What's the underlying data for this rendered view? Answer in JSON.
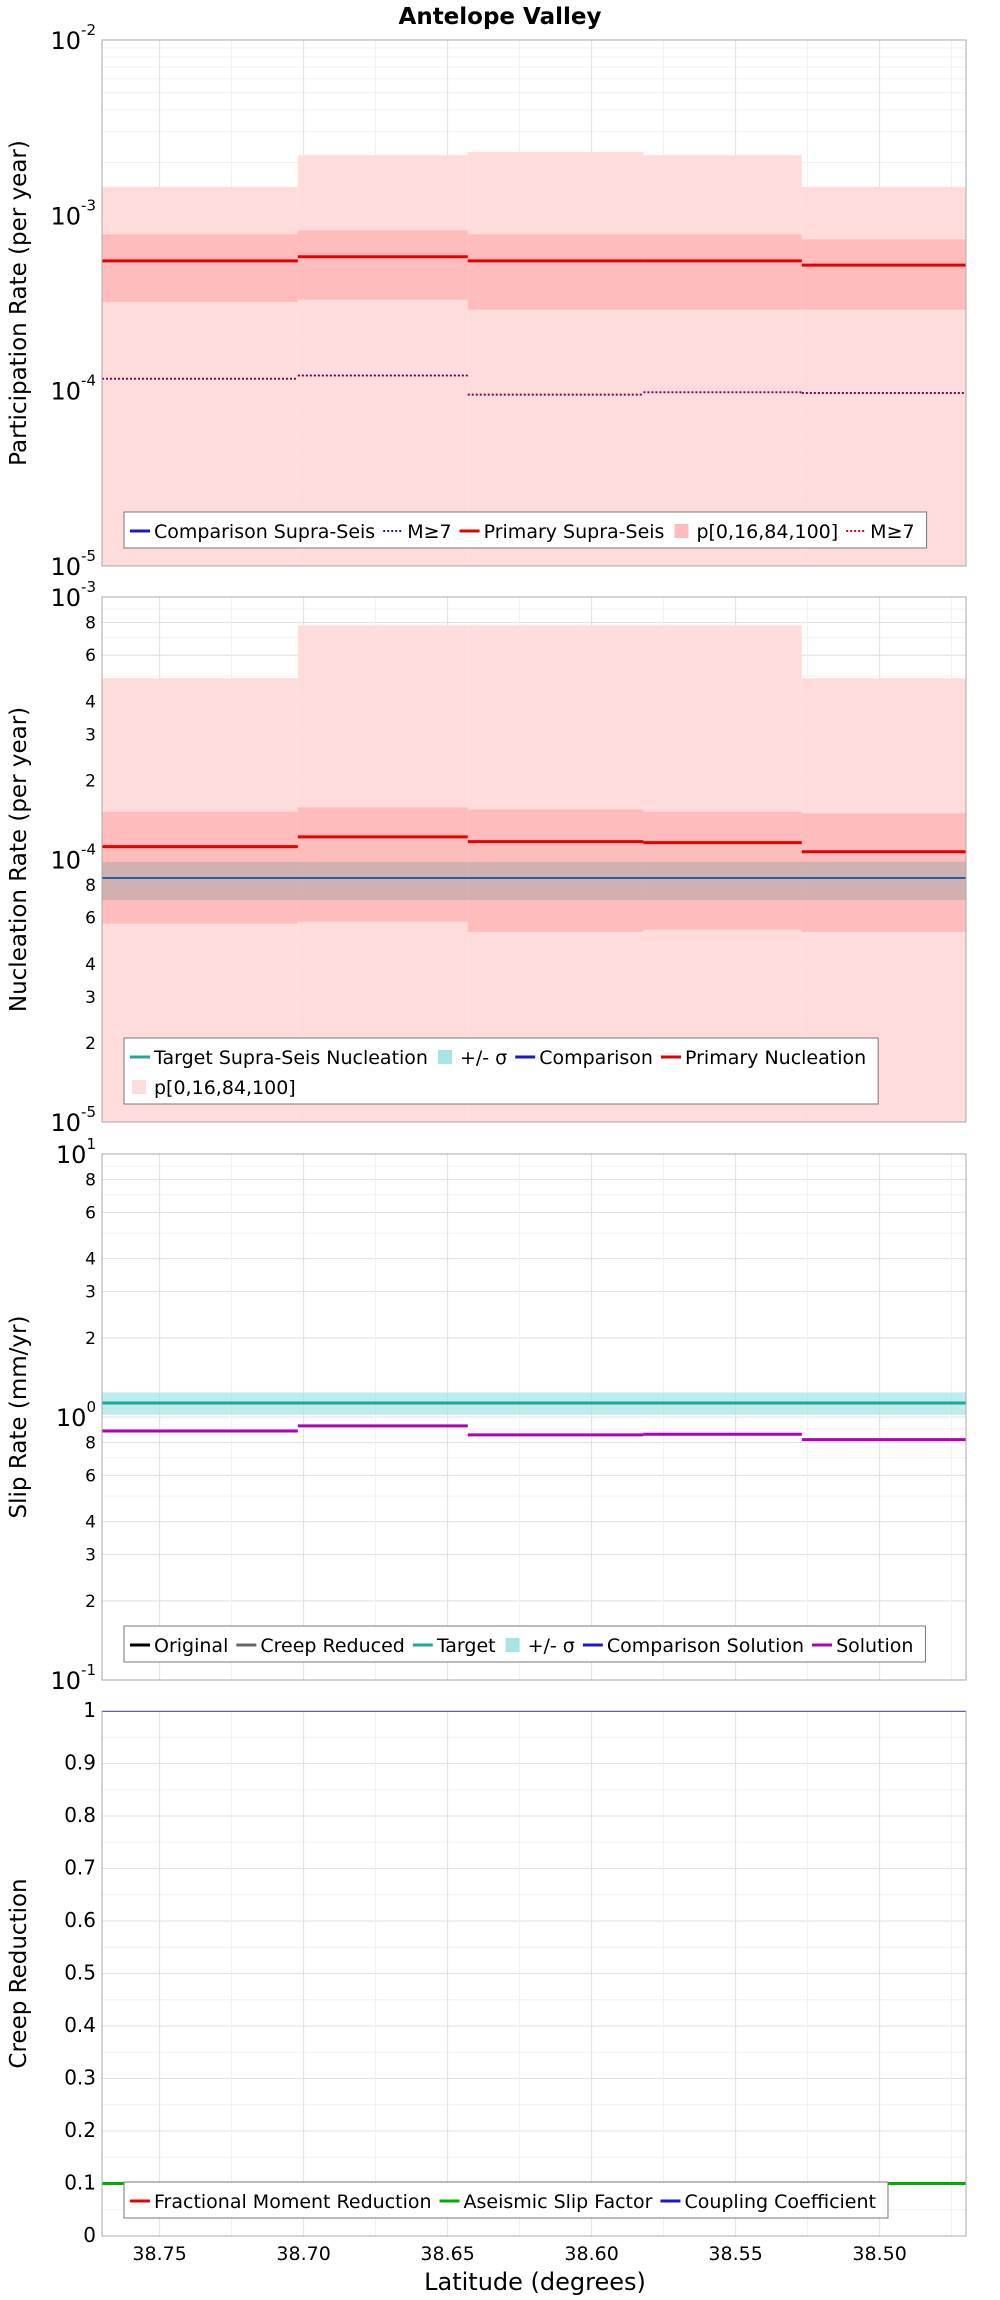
{
  "title": "Antelope Valley",
  "xlabel": "Latitude (degrees)",
  "x_axis": {
    "range": [
      38.77,
      38.47
    ],
    "reversed": true,
    "ticks": [
      "38.75",
      "38.70",
      "38.65",
      "38.60",
      "38.55",
      "38.50"
    ]
  },
  "colors": {
    "primary": "#e60000",
    "primary_band_outer": "#ffdcdc",
    "primary_band_inner": "#ffbcbc",
    "comparison": "#1a1acc",
    "target": "#1aa89a",
    "target_band": "#a8e4e4",
    "solution": "#b000b8",
    "green": "#00b000"
  },
  "chart_data": [
    {
      "type": "line",
      "panel": "participation",
      "ylabel": "Participation Rate (per year)",
      "yscale": "log",
      "ylim": [
        1e-05,
        0.01
      ],
      "y_ticks": [
        {
          "v": 1e-05,
          "base": "10",
          "exp": "-5"
        },
        {
          "v": 0.0001,
          "base": "10",
          "exp": "-4"
        },
        {
          "v": 0.001,
          "base": "10",
          "exp": "-3"
        },
        {
          "v": 0.01,
          "base": "10",
          "exp": "-2"
        }
      ],
      "segments": [
        [
          38.77,
          38.702
        ],
        [
          38.702,
          38.643
        ],
        [
          38.643,
          38.582
        ],
        [
          38.582,
          38.527
        ],
        [
          38.527,
          38.467
        ]
      ],
      "bands": [
        {
          "color": "#ffdcdc",
          "lo": [
            1e-05,
            1e-05,
            1e-05,
            1e-05,
            1e-05
          ],
          "hi": [
            0.00145,
            0.0022,
            0.0023,
            0.0022,
            0.00145
          ]
        },
        {
          "color": "#ffbcbc",
          "lo": [
            0.00032,
            0.00033,
            0.00029,
            0.00029,
            0.00029
          ],
          "hi": [
            0.00078,
            0.00082,
            0.00078,
            0.00078,
            0.00073
          ]
        }
      ],
      "series": [
        {
          "key": "primary",
          "values": [
            0.00055,
            0.00058,
            0.00055,
            0.00055,
            0.00052
          ],
          "color": "#e60000",
          "width": 3
        },
        {
          "key": "primary_m7",
          "values": [
            0.000117,
            0.000122,
            9.5e-05,
            9.8e-05,
            9.7e-05
          ],
          "color": "#e60000",
          "width": 2,
          "dash": "2,2"
        },
        {
          "key": "comparison_m7",
          "values": [
            0.000117,
            0.000122,
            9.5e-05,
            9.8e-05,
            9.7e-05
          ],
          "color": "#1a1acc",
          "width": 1,
          "dash": "2,2"
        }
      ],
      "legend": {
        "rows": [
          [
            {
              "label": "Comparison Supra-Seis",
              "type": "line",
              "color": "#1a1acc"
            },
            {
              "label": "M≥7",
              "type": "dot",
              "color": "#1a1acc"
            },
            {
              "label": "Primary Supra-Seis",
              "type": "line",
              "color": "#e60000"
            },
            {
              "label": "p[0,16,84,100]",
              "type": "fill",
              "color": "#ffbcbc"
            },
            {
              "label": "M≥7",
              "type": "dot",
              "color": "#e60000"
            }
          ]
        ]
      }
    },
    {
      "type": "line",
      "panel": "nucleation",
      "ylabel": "Nucleation Rate (per year)",
      "yscale": "log",
      "ylim": [
        1e-05,
        0.001
      ],
      "y_ticks": [
        {
          "v": 1e-05,
          "base": "10",
          "exp": "-5"
        },
        {
          "v": 2e-05,
          "label": "2"
        },
        {
          "v": 3e-05,
          "label": "3"
        },
        {
          "v": 4e-05,
          "label": "4"
        },
        {
          "v": 6e-05,
          "label": "6"
        },
        {
          "v": 8e-05,
          "label": "8"
        },
        {
          "v": 0.0001,
          "base": "10",
          "exp": "-4"
        },
        {
          "v": 0.0002,
          "label": "2"
        },
        {
          "v": 0.0003,
          "label": "3"
        },
        {
          "v": 0.0004,
          "label": "4"
        },
        {
          "v": 0.0006,
          "label": "6"
        },
        {
          "v": 0.0008,
          "label": "8"
        },
        {
          "v": 0.001,
          "base": "10",
          "exp": "-3"
        }
      ],
      "segments": [
        [
          38.77,
          38.702
        ],
        [
          38.702,
          38.643
        ],
        [
          38.643,
          38.582
        ],
        [
          38.582,
          38.527
        ],
        [
          38.527,
          38.467
        ]
      ],
      "bands": [
        {
          "color": "#ffdcdc",
          "lo": [
            1e-05,
            1e-05,
            1e-05,
            1e-05,
            1e-05
          ],
          "hi": [
            0.00049,
            0.00078,
            0.00078,
            0.00078,
            0.00049
          ]
        },
        {
          "color": "#ffbcbc",
          "lo": [
            5.7e-05,
            5.8e-05,
            5.3e-05,
            5.4e-05,
            5.3e-05
          ],
          "hi": [
            0.000152,
            0.000158,
            0.000155,
            0.000152,
            0.00015
          ]
        },
        {
          "color": "#7a9a9a",
          "opacity": 0.35,
          "lo": [
            7e-05,
            7e-05,
            7e-05,
            7e-05,
            7e-05
          ],
          "hi": [
            9.8e-05,
            9.8e-05,
            9.8e-05,
            9.8e-05,
            9.8e-05
          ],
          "continuous": true
        }
      ],
      "series": [
        {
          "key": "target",
          "values": [
            8.5e-05,
            8.5e-05,
            8.5e-05,
            8.5e-05,
            8.5e-05
          ],
          "color": "#1aa89a",
          "width": 2,
          "continuous": true
        },
        {
          "key": "comparison",
          "values": [
            8.5e-05,
            8.5e-05,
            8.5e-05,
            8.5e-05,
            8.5e-05
          ],
          "color": "#1a1acc",
          "width": 1,
          "continuous": true
        },
        {
          "key": "primary",
          "values": [
            0.000112,
            0.000122,
            0.000117,
            0.000116,
            0.000107
          ],
          "color": "#e60000",
          "width": 3
        }
      ],
      "legend": {
        "rows": [
          [
            {
              "label": "Target Supra-Seis Nucleation",
              "type": "line",
              "color": "#1aa89a"
            },
            {
              "label": "+/- σ",
              "type": "fill",
              "color": "#a8e4e4"
            },
            {
              "label": "Comparison",
              "type": "line",
              "color": "#1a1acc"
            },
            {
              "label": "Primary Nucleation",
              "type": "line",
              "color": "#e60000"
            }
          ],
          [
            {
              "label": "p[0,16,84,100]",
              "type": "fill",
              "color": "#ffdcdc"
            }
          ]
        ]
      }
    },
    {
      "type": "line",
      "panel": "slip",
      "ylabel": "Slip Rate (mm/yr)",
      "yscale": "log",
      "ylim": [
        0.1,
        10
      ],
      "y_ticks": [
        {
          "v": 0.1,
          "base": "10",
          "exp": "-1"
        },
        {
          "v": 0.2,
          "label": "2"
        },
        {
          "v": 0.3,
          "label": "3"
        },
        {
          "v": 0.4,
          "label": "4"
        },
        {
          "v": 0.6,
          "label": "6"
        },
        {
          "v": 0.8,
          "label": "8"
        },
        {
          "v": 1,
          "base": "10",
          "exp": "0"
        },
        {
          "v": 2,
          "label": "2"
        },
        {
          "v": 3,
          "label": "3"
        },
        {
          "v": 4,
          "label": "4"
        },
        {
          "v": 6,
          "label": "6"
        },
        {
          "v": 8,
          "label": "8"
        },
        {
          "v": 10,
          "base": "10",
          "exp": "1"
        }
      ],
      "segments": [
        [
          38.77,
          38.702
        ],
        [
          38.702,
          38.643
        ],
        [
          38.643,
          38.582
        ],
        [
          38.582,
          38.527
        ],
        [
          38.527,
          38.467
        ]
      ],
      "bands": [
        {
          "color": "#a8e4e4",
          "opacity": 0.75,
          "lo": [
            1.02,
            1.02,
            1.02,
            1.02,
            1.02
          ],
          "hi": [
            1.24,
            1.24,
            1.24,
            1.24,
            1.24
          ],
          "continuous": true
        }
      ],
      "series": [
        {
          "key": "target",
          "values": [
            1.13,
            1.13,
            1.13,
            1.13,
            1.13
          ],
          "color": "#1aa89a",
          "width": 3,
          "continuous": true
        },
        {
          "key": "solution",
          "values": [
            0.885,
            0.925,
            0.855,
            0.86,
            0.82
          ],
          "color": "#b000b8",
          "width": 3
        }
      ],
      "legend": {
        "rows": [
          [
            {
              "label": "Original",
              "type": "line",
              "color": "#000000"
            },
            {
              "label": "Creep Reduced",
              "type": "line",
              "color": "#666666"
            },
            {
              "label": "Target",
              "type": "line",
              "color": "#1aa89a"
            },
            {
              "label": "+/- σ",
              "type": "fill",
              "color": "#a8e4e4"
            },
            {
              "label": "Comparison Solution",
              "type": "line",
              "color": "#1a1acc"
            },
            {
              "label": "Solution",
              "type": "line",
              "color": "#b000b8"
            }
          ]
        ]
      }
    },
    {
      "type": "line",
      "panel": "creep",
      "ylabel": "Creep Reduction",
      "yscale": "linear",
      "ylim": [
        0,
        1
      ],
      "y_ticks": [
        {
          "v": 0,
          "label": "0"
        },
        {
          "v": 0.1,
          "label": "0.1"
        },
        {
          "v": 0.2,
          "label": "0.2"
        },
        {
          "v": 0.3,
          "label": "0.3"
        },
        {
          "v": 0.4,
          "label": "0.4"
        },
        {
          "v": 0.5,
          "label": "0.5"
        },
        {
          "v": 0.6,
          "label": "0.6"
        },
        {
          "v": 0.7,
          "label": "0.7"
        },
        {
          "v": 0.8,
          "label": "0.8"
        },
        {
          "v": 0.9,
          "label": "0.9"
        },
        {
          "v": 1,
          "label": "1"
        }
      ],
      "segments": [
        [
          38.77,
          38.702
        ],
        [
          38.702,
          38.643
        ],
        [
          38.643,
          38.582
        ],
        [
          38.582,
          38.527
        ],
        [
          38.527,
          38.467
        ]
      ],
      "bands": [],
      "series": [
        {
          "key": "coupling",
          "values": [
            1,
            1,
            1,
            1,
            1
          ],
          "color": "#1a1acc",
          "width": 2,
          "continuous": true
        },
        {
          "key": "aseismic",
          "values": [
            0.1,
            0.1,
            0.1,
            0.1,
            0.1
          ],
          "color": "#00b000",
          "width": 3,
          "continuous": true
        }
      ],
      "legend": {
        "rows": [
          [
            {
              "label": "Fractional Moment Reduction",
              "type": "line",
              "color": "#e60000"
            },
            {
              "label": "Aseismic Slip Factor",
              "type": "line",
              "color": "#00b000"
            },
            {
              "label": "Coupling Coefficient",
              "type": "line",
              "color": "#1a1acc"
            }
          ]
        ]
      }
    }
  ]
}
